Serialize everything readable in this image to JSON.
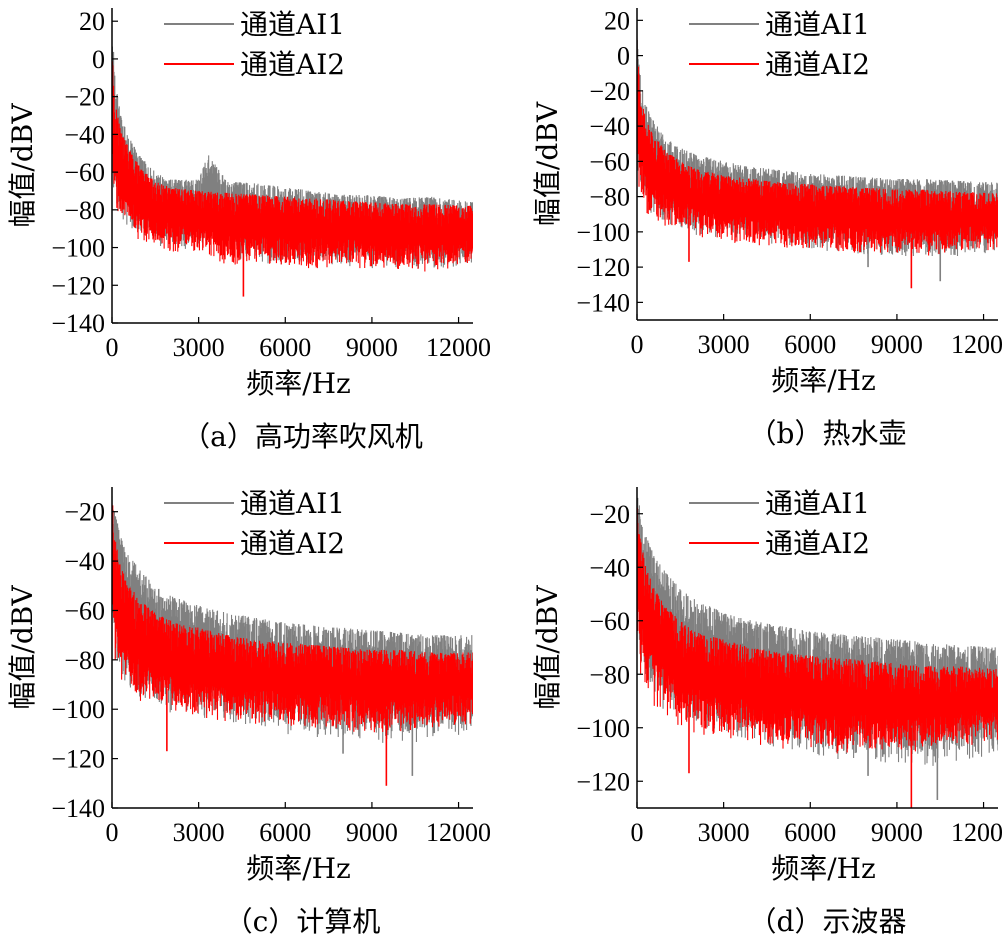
{
  "chart_data": [
    {
      "type": "line",
      "caption": "（a）高功率吹风机",
      "xlabel": "频率/Hz",
      "ylabel": "幅值/dBV",
      "xlim": [
        0,
        12500
      ],
      "ylim": [
        -140,
        27
      ],
      "x_ticks": [
        "0",
        "3000",
        "6000",
        "9000",
        "12000"
      ],
      "y_ticks": [
        "20",
        "0",
        "-20",
        "-40",
        "-60",
        "-80",
        "-100",
        "-120",
        "-140"
      ],
      "legend_position": "top",
      "series": [
        {
          "name": "通道AI1",
          "color": "#808080",
          "x": [
            0,
            100,
            300,
            600,
            1000,
            1500,
            2000,
            3000,
            3300,
            4000,
            5000,
            6000,
            7000,
            8000,
            9000,
            10000,
            11000,
            12500
          ],
          "top": [
            20,
            -5,
            -30,
            -42,
            -52,
            -60,
            -64,
            -64,
            -50,
            -65,
            -66,
            -68,
            -70,
            -72,
            -72,
            -74,
            -73,
            -76
          ],
          "bottom": [
            -60,
            -80,
            -85,
            -90,
            -95,
            -100,
            -100,
            -102,
            -100,
            -105,
            -108,
            -110,
            -110,
            -110,
            -112,
            -112,
            -113,
            -110
          ]
        },
        {
          "name": "通道AI2",
          "color": "#ff0000",
          "x": [
            0,
            100,
            300,
            600,
            1000,
            1500,
            2000,
            3000,
            4000,
            5000,
            6000,
            7000,
            8000,
            9000,
            10000,
            11000,
            12500
          ],
          "top": [
            5,
            -20,
            -38,
            -48,
            -58,
            -65,
            -68,
            -70,
            -71,
            -72,
            -73,
            -74,
            -75,
            -76,
            -77,
            -77,
            -78
          ],
          "bottom": [
            -70,
            -82,
            -88,
            -92,
            -98,
            -100,
            -102,
            -104,
            -110,
            -108,
            -110,
            -112,
            -110,
            -112,
            -112,
            -113,
            -110
          ]
        }
      ]
    },
    {
      "type": "line",
      "caption": "（b）热水壶",
      "xlabel": "频率/Hz",
      "ylabel": "幅值/dBV",
      "xlim": [
        0,
        12500
      ],
      "ylim": [
        -150,
        27
      ],
      "x_ticks": [
        "0",
        "3000",
        "6000",
        "9000",
        "12000"
      ],
      "y_ticks": [
        "20",
        "0",
        "-20",
        "-40",
        "-60",
        "-80",
        "-100",
        "-120",
        "-140"
      ],
      "legend_position": "top",
      "series": [
        {
          "name": "通道AI1",
          "color": "#808080",
          "x": [
            0,
            100,
            300,
            600,
            1000,
            1500,
            2000,
            3000,
            4000,
            5000,
            6000,
            7000,
            8000,
            9000,
            10000,
            11000,
            12500
          ],
          "top": [
            15,
            -10,
            -28,
            -38,
            -46,
            -52,
            -56,
            -60,
            -63,
            -65,
            -67,
            -68,
            -69,
            -70,
            -70,
            -71,
            -72
          ],
          "bottom": [
            -65,
            -80,
            -88,
            -92,
            -96,
            -100,
            -102,
            -104,
            -106,
            -108,
            -110,
            -112,
            -113,
            -114,
            -115,
            -115,
            -112
          ]
        },
        {
          "name": "通道AI2",
          "color": "#ff0000",
          "x": [
            0,
            100,
            300,
            600,
            1000,
            1500,
            2000,
            3000,
            4000,
            5000,
            6000,
            7000,
            8000,
            9000,
            10000,
            11000,
            12500
          ],
          "top": [
            10,
            -18,
            -36,
            -46,
            -54,
            -60,
            -64,
            -68,
            -70,
            -72,
            -73,
            -74,
            -75,
            -76,
            -76,
            -77,
            -78
          ],
          "bottom": [
            -70,
            -85,
            -90,
            -95,
            -98,
            -100,
            -103,
            -106,
            -108,
            -110,
            -110,
            -112,
            -112,
            -113,
            -114,
            -112,
            -110
          ]
        }
      ]
    },
    {
      "type": "line",
      "caption": "（c）计算机",
      "xlabel": "频率/Hz",
      "ylabel": "幅值/dBV",
      "xlim": [
        0,
        12500
      ],
      "ylim": [
        -140,
        -10
      ],
      "x_ticks": [
        "0",
        "3000",
        "6000",
        "9000",
        "12000"
      ],
      "y_ticks": [
        "-20",
        "-40",
        "-60",
        "-80",
        "-100",
        "-120",
        "-140"
      ],
      "legend_position": "top",
      "series": [
        {
          "name": "通道AI1",
          "color": "#808080",
          "x": [
            0,
            100,
            300,
            600,
            1000,
            1500,
            2000,
            3000,
            4000,
            5000,
            6000,
            7000,
            8000,
            9000,
            10000,
            11000,
            12500
          ],
          "top": [
            -10,
            -20,
            -30,
            -38,
            -44,
            -50,
            -54,
            -58,
            -61,
            -63,
            -65,
            -66,
            -67,
            -68,
            -69,
            -70,
            -70
          ],
          "bottom": [
            -55,
            -80,
            -88,
            -92,
            -96,
            -100,
            -102,
            -104,
            -106,
            -108,
            -110,
            -112,
            -112,
            -114,
            -114,
            -113,
            -110
          ]
        },
        {
          "name": "通道AI2",
          "color": "#ff0000",
          "x": [
            0,
            100,
            300,
            600,
            1000,
            1500,
            2000,
            3000,
            4000,
            5000,
            6000,
            7000,
            8000,
            9000,
            10000,
            11000,
            12500
          ],
          "top": [
            -12,
            -30,
            -42,
            -50,
            -56,
            -61,
            -64,
            -67,
            -70,
            -72,
            -73,
            -74,
            -75,
            -76,
            -76,
            -77,
            -77
          ],
          "bottom": [
            -62,
            -84,
            -90,
            -94,
            -98,
            -100,
            -102,
            -104,
            -106,
            -106,
            -108,
            -108,
            -109,
            -110,
            -110,
            -108,
            -106
          ]
        }
      ]
    },
    {
      "type": "line",
      "caption": "（d）示波器",
      "xlabel": "频率/Hz",
      "ylabel": "幅值/dBV",
      "xlim": [
        0,
        12500
      ],
      "ylim": [
        -130,
        -10
      ],
      "x_ticks": [
        "0",
        "3000",
        "6000",
        "9000",
        "12000"
      ],
      "y_ticks": [
        "-20",
        "-40",
        "-60",
        "-80",
        "-100",
        "-120"
      ],
      "legend_position": "top",
      "series": [
        {
          "name": "通道AI1",
          "color": "#808080",
          "x": [
            0,
            100,
            300,
            600,
            1000,
            1500,
            2000,
            3000,
            4000,
            5000,
            6000,
            7000,
            8000,
            9000,
            10000,
            11000,
            12500
          ],
          "top": [
            -10,
            -18,
            -28,
            -36,
            -42,
            -48,
            -52,
            -57,
            -60,
            -62,
            -64,
            -65,
            -66,
            -67,
            -68,
            -69,
            -70
          ],
          "bottom": [
            -55,
            -78,
            -85,
            -90,
            -94,
            -98,
            -100,
            -102,
            -105,
            -108,
            -110,
            -112,
            -113,
            -114,
            -115,
            -114,
            -110
          ]
        },
        {
          "name": "通道AI2",
          "color": "#ff0000",
          "x": [
            0,
            100,
            300,
            600,
            1000,
            1500,
            2000,
            3000,
            4000,
            5000,
            6000,
            7000,
            8000,
            9000,
            10000,
            11000,
            12500
          ],
          "top": [
            -12,
            -28,
            -40,
            -48,
            -55,
            -60,
            -64,
            -67,
            -70,
            -72,
            -73,
            -74,
            -75,
            -76,
            -77,
            -77,
            -78
          ],
          "bottom": [
            -60,
            -82,
            -88,
            -92,
            -96,
            -100,
            -102,
            -104,
            -106,
            -108,
            -108,
            -110,
            -110,
            -110,
            -110,
            -108,
            -105
          ]
        }
      ]
    }
  ]
}
